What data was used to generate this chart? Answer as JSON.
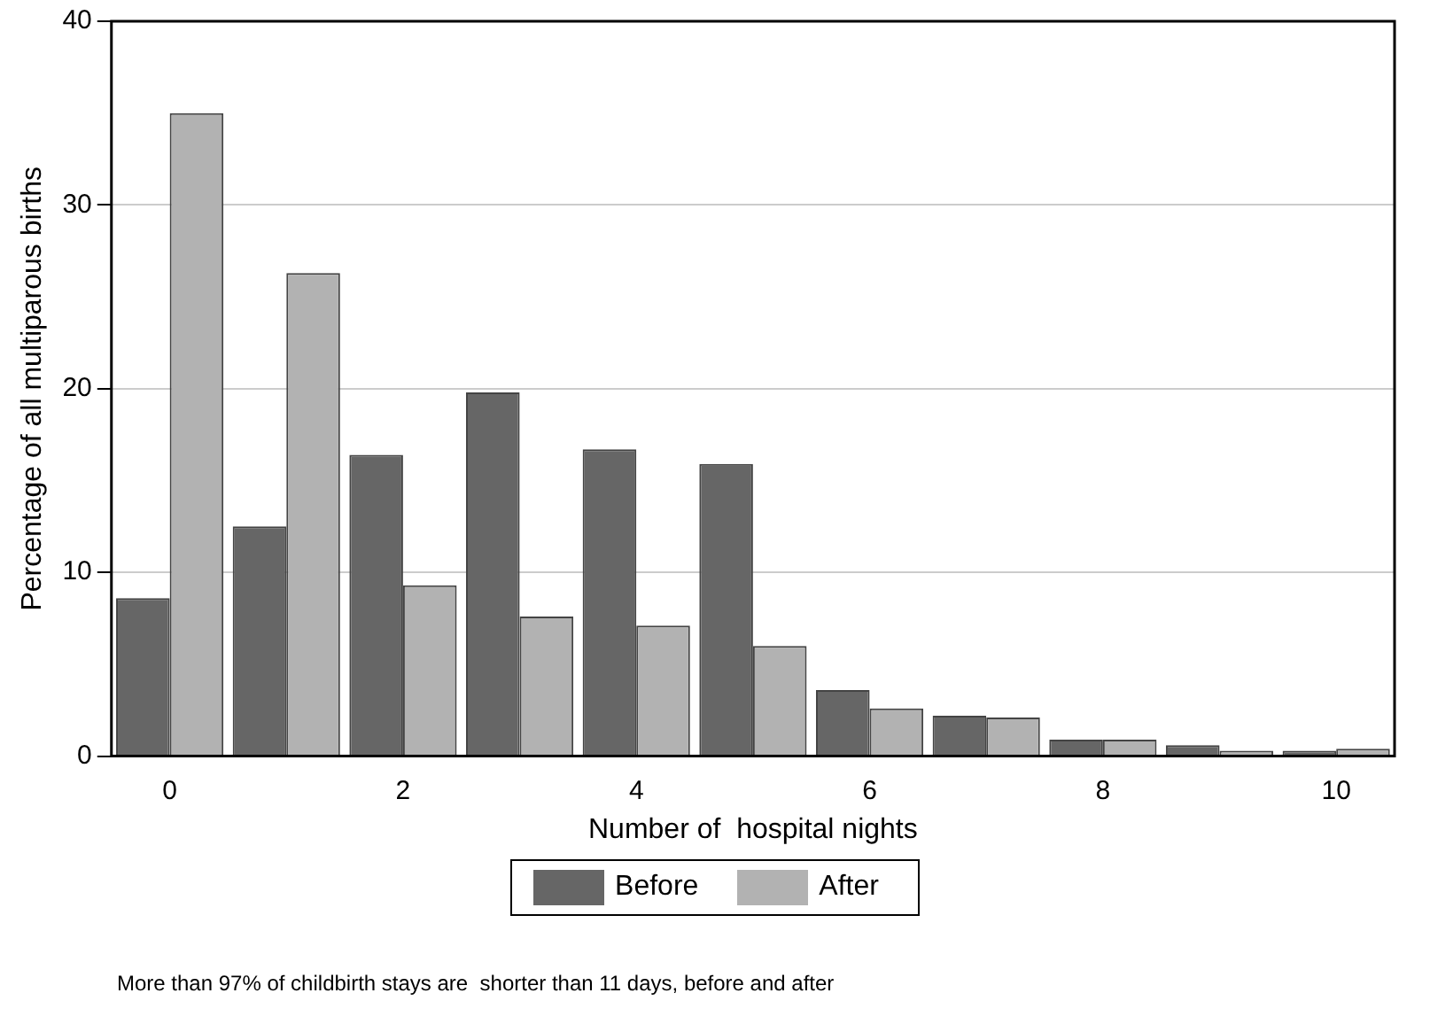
{
  "chart_data": {
    "type": "bar",
    "xlabel": "Number of  hospital nights",
    "ylabel": "Percentage of all multiparous births",
    "categories": [
      "0",
      null,
      "2",
      null,
      "4",
      null,
      "6",
      null,
      "8",
      null,
      "10"
    ],
    "series": [
      {
        "name": "Before",
        "color": "#666666",
        "values": [
          8.6,
          12.5,
          16.4,
          19.8,
          16.7,
          15.9,
          3.6,
          2.2,
          0.9,
          0.6,
          0.3
        ]
      },
      {
        "name": "After",
        "color": "#b2b2b2",
        "values": [
          35.0,
          26.3,
          9.3,
          7.6,
          7.1,
          6.0,
          2.6,
          2.1,
          0.9,
          0.3,
          0.4
        ]
      }
    ],
    "ylim": [
      0,
      40
    ],
    "yticks": [
      0,
      10,
      20,
      30,
      40
    ],
    "grid": "y",
    "legend": "bottom",
    "annotations": [
      "More than 97% of childbirth stays are  shorter than 11 days, before and after"
    ]
  }
}
